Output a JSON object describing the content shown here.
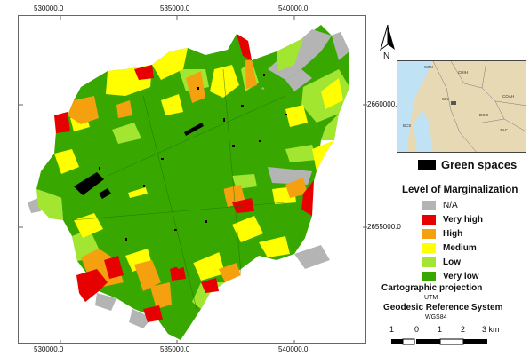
{
  "map": {
    "x_ticks": [
      "530000.0",
      "535000.0",
      "540000.0"
    ],
    "y_ticks": [
      "2660000.0",
      "2655000.0"
    ]
  },
  "north_arrow": {
    "label": "N",
    "icon": "north-arrow-icon"
  },
  "inset_map": {
    "labels": [
      "SON",
      "CHIH",
      "SIN",
      "COAH",
      "DGO",
      "BCS",
      "ZAC"
    ],
    "land_color": "#e8d9b5",
    "sea_color": "#bfe3f5"
  },
  "legend": {
    "green_spaces": {
      "label": "Green spaces",
      "color": "#000000"
    },
    "title": "Level of Marginalization",
    "items": [
      {
        "label": "N/A",
        "color": "#b4b4b4"
      },
      {
        "label": "Very high",
        "color": "#e60000"
      },
      {
        "label": "High",
        "color": "#f5a00f"
      },
      {
        "label": "Medium",
        "color": "#ffff00"
      },
      {
        "label": "Low",
        "color": "#a3e632"
      },
      {
        "label": "Very low",
        "color": "#38a800"
      }
    ]
  },
  "projection": {
    "title": "Cartographic projection",
    "value": "UTM",
    "geo_title": "Geodesic Reference System",
    "geo_value": "WGS84"
  },
  "scale": {
    "labels": [
      "1",
      "0",
      "1",
      "2",
      "3 km"
    ]
  }
}
